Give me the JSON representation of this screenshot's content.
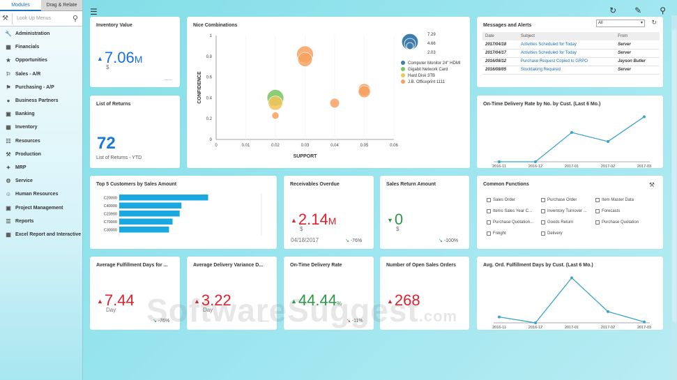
{
  "sidebar": {
    "tabs": [
      "Modules",
      "Drag & Relate"
    ],
    "search_placeholder": "Look Up Menus",
    "items": [
      {
        "label": "Administration",
        "icon": "admin-icon"
      },
      {
        "label": "Financials",
        "icon": "financials-icon"
      },
      {
        "label": "Opportunities",
        "icon": "opportunities-icon"
      },
      {
        "label": "Sales - A/R",
        "icon": "sales-icon"
      },
      {
        "label": "Purchasing - A/P",
        "icon": "purchasing-icon"
      },
      {
        "label": "Business Partners",
        "icon": "partners-icon"
      },
      {
        "label": "Banking",
        "icon": "banking-icon"
      },
      {
        "label": "Inventory",
        "icon": "inventory-icon"
      },
      {
        "label": "Resources",
        "icon": "resources-icon"
      },
      {
        "label": "Production",
        "icon": "production-icon"
      },
      {
        "label": "MRP",
        "icon": "mrp-icon"
      },
      {
        "label": "Service",
        "icon": "service-icon"
      },
      {
        "label": "Human Resources",
        "icon": "hr-icon"
      },
      {
        "label": "Project Management",
        "icon": "project-icon"
      },
      {
        "label": "Reports",
        "icon": "reports-icon"
      },
      {
        "label": "Excel Report and Interactive",
        "icon": "excel-icon"
      }
    ]
  },
  "cards": {
    "inventory": {
      "title": "Inventory Value",
      "value": "7.06",
      "unit": "M",
      "currency": "$"
    },
    "nice": {
      "title": "Nice Combinations",
      "xlabel": "SUPPORT",
      "ylabel": "CONFIDENCE"
    },
    "messages": {
      "title": "Messages and Alerts",
      "filter": "All",
      "headers": [
        "Date",
        "Subject",
        "From"
      ],
      "rows": [
        {
          "date": "2017/04/18",
          "subject": "Activities Scheduled for Today",
          "from": "Server"
        },
        {
          "date": "2017/04/17",
          "subject": "Activities Scheduled for Today",
          "from": "Server"
        },
        {
          "date": "2016/08/12",
          "subject": "Purchase Request Copied to GRPO",
          "from": "Jayson Butler"
        },
        {
          "date": "2016/08/05",
          "subject": "Stocktaking Required",
          "from": "Server"
        }
      ]
    },
    "returns": {
      "title": "List of Returns",
      "value": "72",
      "sub": "List of Returns - YTD"
    },
    "ontime_rate": {
      "title": "On-Time Delivery Rate by No. by Cust. (Last 6 Mo.)"
    },
    "top5": {
      "title": "Top 5 Customers by Sales Amount"
    },
    "receivables": {
      "title": "Receivables Overdue",
      "value": "2.14",
      "unit": "M",
      "currency": "$",
      "date": "04/18/2017",
      "delta": "-76%"
    },
    "sales_return": {
      "title": "Sales Return Amount",
      "value": "0",
      "currency": "$",
      "delta": "-100%"
    },
    "common": {
      "title": "Common Functions",
      "items": [
        "Sales Order",
        "Purchase Order",
        "Item Master Data",
        "Items Sales Year C...",
        "Inventory Turnover ...",
        "Forecasts",
        "Purchase Quotation...",
        "Goods Return",
        "Purchase Quotation",
        "Freight",
        "Delivery"
      ]
    },
    "fulfill": {
      "title": "Average Fulfillment Days for ...",
      "value": "7.44",
      "unit_label": "Day",
      "delta": "-76%"
    },
    "variance": {
      "title": "Average Delivery Variance D...",
      "value": "3.22",
      "unit_label": "Day"
    },
    "ontime": {
      "title": "On-Time Delivery Rate",
      "value": "44.44",
      "unit": "%",
      "delta": "-11%"
    },
    "open_orders": {
      "title": "Number of Open Sales Orders",
      "value": "268"
    },
    "avg_ord": {
      "title": "Avg. Ord. Fulfillment Days by Cust. (Last 6 Mo.)"
    }
  },
  "watermark": {
    "main": "SoftwareSuggest",
    "tld": ".com"
  },
  "colors": {
    "accent_blue": "#1a6fe0",
    "red": "#e0202c",
    "green": "#2a9a47",
    "line": "#3aa3c8",
    "bar": "#1aa8e0"
  },
  "chart_data": [
    {
      "type": "scatter",
      "title": "Nice Combinations",
      "xlabel": "SUPPORT",
      "ylabel": "CONFIDENCE",
      "xlim": [
        0,
        0.06
      ],
      "ylim": [
        0,
        1
      ],
      "xticks": [
        "0",
        "0.01",
        "0.02",
        "0.03",
        "0.04",
        "0.05",
        "0.06"
      ],
      "yticks": [
        "0",
        "0.2",
        "0.4",
        "0.6",
        "0.8",
        "1"
      ],
      "size_legend": [
        "7.29",
        "4.66",
        "2.03"
      ],
      "series": [
        {
          "name": "Computer Monitor 24\" HDMI",
          "color": "#3e7cae",
          "points": []
        },
        {
          "name": "Gigabit Network Card",
          "color": "#79c45e",
          "points": [
            {
              "x": 0.02,
              "y": 0.4,
              "s": 7
            }
          ]
        },
        {
          "name": "Hard Disk 3TB",
          "color": "#f2c45a",
          "points": [
            {
              "x": 0.02,
              "y": 0.35,
              "s": 6
            }
          ]
        },
        {
          "name": "J.B. Officeprint 1111",
          "color": "#f7a160",
          "points": [
            {
              "x": 0.02,
              "y": 0.23,
              "s": 3
            },
            {
              "x": 0.03,
              "y": 0.82,
              "s": 7
            },
            {
              "x": 0.03,
              "y": 0.77,
              "s": 6
            },
            {
              "x": 0.04,
              "y": 0.35,
              "s": 4
            },
            {
              "x": 0.05,
              "y": 0.48,
              "s": 5
            },
            {
              "x": 0.05,
              "y": 0.46,
              "s": 5
            }
          ]
        }
      ]
    },
    {
      "type": "line",
      "title": "On-Time Delivery Rate by No. by Cust. (Last 6 Mo.)",
      "categories": [
        "2016-11",
        "2016-12",
        "2017-01",
        "2017-02",
        "2017-03"
      ],
      "values": [
        0,
        0,
        0.65,
        0.45,
        1.0
      ],
      "ylim": [
        0,
        1.1
      ]
    },
    {
      "type": "bar",
      "title": "Top 5 Customers by Sales Amount",
      "categories": [
        "C20000",
        "C40000",
        "C23900",
        "C70000",
        "C30000"
      ],
      "values": [
        100,
        70,
        68,
        60,
        56
      ],
      "xlim": [
        0,
        160
      ]
    },
    {
      "type": "line",
      "title": "Avg. Ord. Fulfillment Days by Cust. (Last 6 Mo.)",
      "categories": [
        "2016-11",
        "2016-12",
        "2017-01",
        "2017-02",
        "2017-03"
      ],
      "values": [
        0.13,
        0,
        1.0,
        0.25,
        0.02
      ],
      "ylim": [
        0,
        1.1
      ]
    }
  ]
}
